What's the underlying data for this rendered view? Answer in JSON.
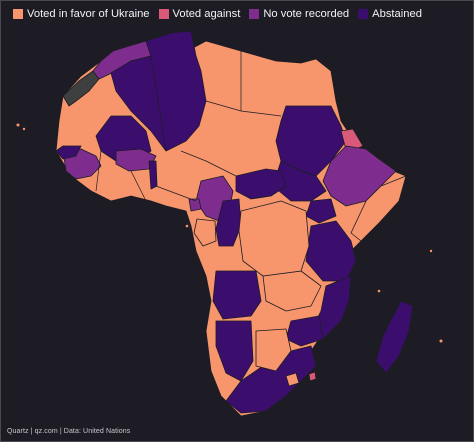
{
  "legend": [
    {
      "label": "Voted in favor of Ukraine",
      "color": "#f7956c"
    },
    {
      "label": "Voted against",
      "color": "#d95a78"
    },
    {
      "label": "No vote recorded",
      "color": "#7e2d8e"
    },
    {
      "label": "Abstained",
      "color": "#3b0e6e"
    }
  ],
  "colors": {
    "background": "#1d1c24",
    "no_data": "#3e403f"
  },
  "source": "Quartz | qz.com | Data: United Nations"
}
